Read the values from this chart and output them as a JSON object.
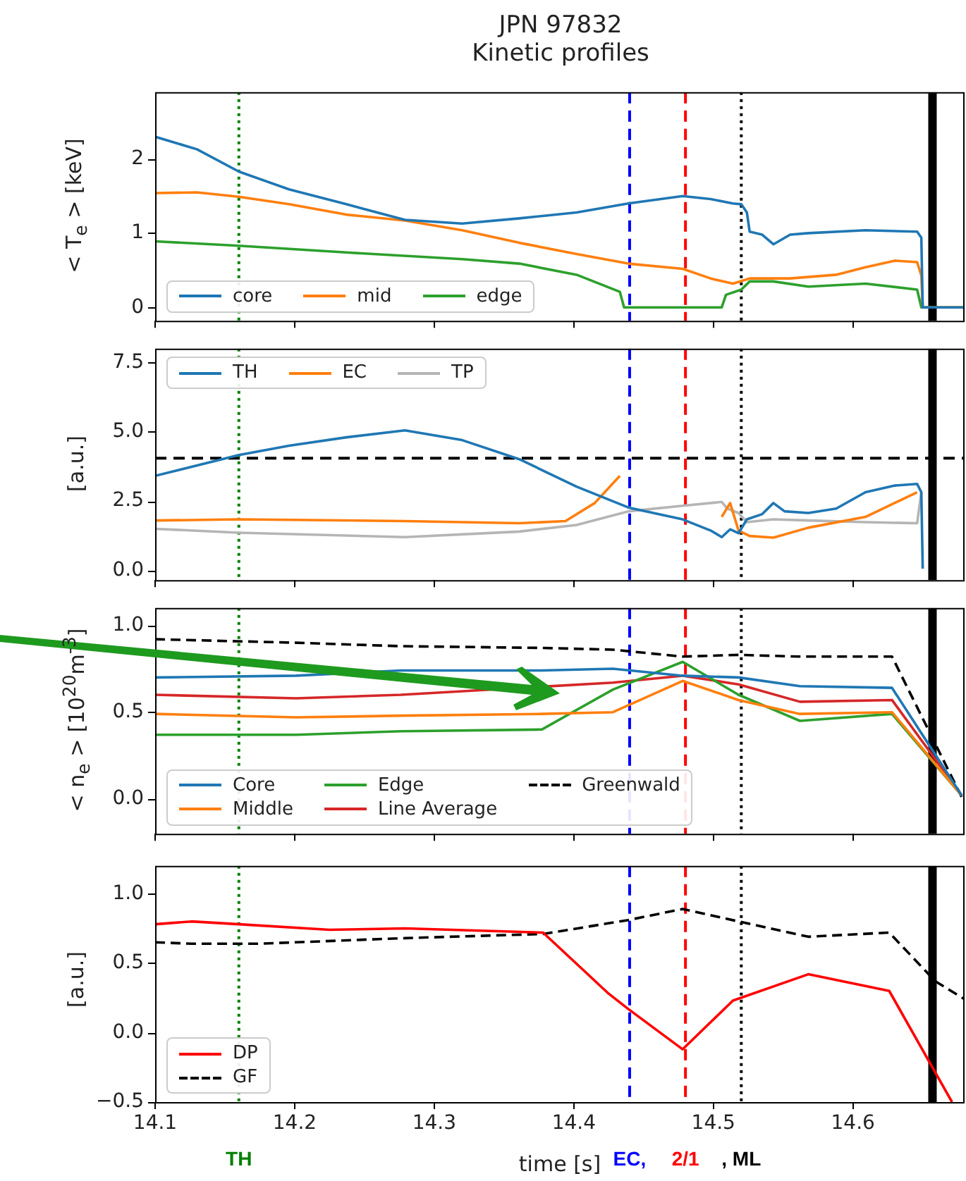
{
  "chart_data": [
    {
      "type": "line",
      "title": "JPN 97832",
      "subtitle": "Kinetic profiles",
      "ylabel": "< T$_{e}$ >  [keV]",
      "legend": "bottom left",
      "tick_labels": "y",
      "xlim": [
        14.1,
        14.68
      ],
      "xticks": [
        14.1,
        14.2,
        14.3,
        14.4,
        14.5,
        14.6
      ],
      "ylim": [
        -0.18,
        2.9
      ],
      "yticks": [
        0,
        1,
        2
      ],
      "series": [
        {
          "name": "core",
          "color": "#1f77b4",
          "x": [
            14.1,
            14.13,
            14.16,
            14.196,
            14.237,
            14.279,
            14.32,
            14.361,
            14.402,
            14.439,
            14.478,
            14.498,
            14.514,
            14.52,
            14.524,
            14.526,
            14.535,
            14.543,
            14.555,
            14.568,
            14.609,
            14.646,
            14.649,
            14.65,
            14.68
          ],
          "values": [
            2.3,
            2.13,
            1.83,
            1.59,
            1.39,
            1.18,
            1.13,
            1.2,
            1.28,
            1.4,
            1.5,
            1.46,
            1.4,
            1.39,
            1.28,
            1.02,
            0.98,
            0.85,
            0.98,
            1.0,
            1.04,
            1.02,
            0.94,
            0,
            0
          ]
        },
        {
          "name": "mid",
          "color": "#ff7f0e",
          "x": [
            14.1,
            14.13,
            14.16,
            14.196,
            14.237,
            14.279,
            14.32,
            14.361,
            14.402,
            14.439,
            14.478,
            14.498,
            14.514,
            14.526,
            14.555,
            14.588,
            14.609,
            14.63,
            14.646,
            14.649,
            14.65,
            14.68
          ],
          "values": [
            1.54,
            1.55,
            1.49,
            1.39,
            1.25,
            1.17,
            1.04,
            0.87,
            0.72,
            0.59,
            0.52,
            0.39,
            0.32,
            0.39,
            0.39,
            0.44,
            0.54,
            0.63,
            0.61,
            0.43,
            0,
            0
          ]
        },
        {
          "name": "edge",
          "color": "#2ca02c",
          "x": [
            14.1,
            14.16,
            14.237,
            14.32,
            14.361,
            14.402,
            14.433,
            14.436,
            14.506,
            14.509,
            14.52,
            14.526,
            14.543,
            14.568,
            14.609,
            14.646,
            14.649,
            14.68
          ],
          "values": [
            0.89,
            0.83,
            0.74,
            0.65,
            0.59,
            0.44,
            0.21,
            0,
            0,
            0.17,
            0.24,
            0.35,
            0.35,
            0.28,
            0.32,
            0.24,
            0,
            0
          ]
        }
      ],
      "ref_lines": [
        {
          "axis": "x",
          "value": 14.16,
          "color": "#008000",
          "line_style": "dotted"
        },
        {
          "axis": "x",
          "value": 14.44,
          "color": "#0000ff",
          "line_style": "dashed"
        },
        {
          "axis": "x",
          "value": 14.48,
          "color": "#ff0000",
          "line_style": "dashed"
        },
        {
          "axis": "x",
          "value": 14.52,
          "color": "#000000",
          "line_style": "dotted"
        },
        {
          "axis": "x",
          "value": 14.657,
          "color": "#000000",
          "line_style": "solid"
        }
      ]
    },
    {
      "type": "line",
      "ylabel": "[a.u.]",
      "legend": "top left",
      "tick_labels": "y",
      "xlim": [
        14.1,
        14.68
      ],
      "xticks": [
        14.1,
        14.2,
        14.3,
        14.4,
        14.5,
        14.6
      ],
      "ylim": [
        -0.35,
        8.0
      ],
      "yticks": [
        {
          "value": 0,
          "label": "0.0"
        },
        {
          "value": 2.5,
          "label": "2.5"
        },
        {
          "value": 5,
          "label": "5.0"
        },
        {
          "value": 7.5,
          "label": "7.5"
        }
      ],
      "series": [
        {
          "name": "TH",
          "color": "#1f77b4",
          "x": [
            14.1,
            14.16,
            14.196,
            14.237,
            14.279,
            14.32,
            14.361,
            14.402,
            14.439,
            14.478,
            14.498,
            14.506,
            14.512,
            14.518,
            14.524,
            14.535,
            14.543,
            14.551,
            14.568,
            14.588,
            14.609,
            14.63,
            14.646,
            14.649,
            14.65
          ],
          "values": [
            3.41,
            4.16,
            4.5,
            4.8,
            5.05,
            4.7,
            4.01,
            3.02,
            2.27,
            1.84,
            1.44,
            1.2,
            1.48,
            1.34,
            1.84,
            2.03,
            2.43,
            2.13,
            2.07,
            2.23,
            2.82,
            3.06,
            3.12,
            2.82,
            0.06
          ]
        },
        {
          "name": "EC",
          "color": "#ff7f0e",
          "x": [
            14.1,
            14.16,
            14.279,
            14.361,
            14.394,
            14.415,
            14.433,
            14.47,
            14.506,
            14.512,
            14.518,
            14.526,
            14.543,
            14.568,
            14.609,
            14.646
          ],
          "values": [
            1.8,
            1.84,
            1.78,
            1.7,
            1.78,
            2.43,
            3.41,
            null,
            1.93,
            2.43,
            1.44,
            1.24,
            1.18,
            1.54,
            1.93,
            2.82
          ]
        },
        {
          "name": "TP",
          "color": "#b5b5b5",
          "x": [
            14.1,
            14.16,
            14.279,
            14.361,
            14.402,
            14.439,
            14.478,
            14.506,
            14.51,
            14.518,
            14.524,
            14.543,
            14.568,
            14.609,
            14.646,
            14.649
          ],
          "values": [
            1.5,
            1.36,
            1.2,
            1.4,
            1.64,
            2.13,
            2.33,
            2.47,
            2.23,
            2.07,
            1.74,
            1.84,
            1.8,
            1.74,
            1.7,
            2.82
          ]
        }
      ],
      "ref_lines": [
        {
          "axis": "y",
          "value": 4.05,
          "color": "#000000",
          "line_style": "dashed"
        },
        {
          "axis": "x",
          "value": 14.16,
          "color": "#008000",
          "line_style": "dotted"
        },
        {
          "axis": "x",
          "value": 14.44,
          "color": "#0000ff",
          "line_style": "dashed"
        },
        {
          "axis": "x",
          "value": 14.48,
          "color": "#ff0000",
          "line_style": "dashed"
        },
        {
          "axis": "x",
          "value": 14.52,
          "color": "#000000",
          "line_style": "dotted"
        },
        {
          "axis": "x",
          "value": 14.657,
          "color": "#000000",
          "line_style": "solid"
        }
      ]
    },
    {
      "type": "line",
      "ylabel": "< n$_{e}$ > [10$^{20}$m$^{-3}$]",
      "legend": "bottom left",
      "tick_labels": "y",
      "xlim": [
        14.1,
        14.68
      ],
      "xticks": [
        14.1,
        14.2,
        14.3,
        14.4,
        14.5,
        14.6
      ],
      "ylim": [
        -0.2,
        1.1
      ],
      "yticks": [
        {
          "value": 0,
          "label": "0.0"
        },
        {
          "value": 0.5,
          "label": "0.5"
        },
        {
          "value": 1,
          "label": "1.0"
        }
      ],
      "x": [
        14.1,
        14.201,
        14.276,
        14.377,
        14.428,
        14.478,
        14.518,
        14.562,
        14.628,
        14.678
      ],
      "series": [
        {
          "name": "Core",
          "color": "#1f77b4",
          "values": [
            0.7,
            0.71,
            0.74,
            0.74,
            0.75,
            0.71,
            0.7,
            0.65,
            0.64,
            0.02
          ]
        },
        {
          "name": "Middle",
          "color": "#ff7f0e",
          "values": [
            0.49,
            0.47,
            0.48,
            0.49,
            0.5,
            0.68,
            0.57,
            0.49,
            0.5,
            0.02
          ]
        },
        {
          "name": "Edge",
          "color": "#2ca02c",
          "values": [
            0.37,
            0.37,
            0.39,
            0.4,
            0.63,
            0.79,
            0.6,
            0.45,
            0.49,
            0.02
          ]
        },
        {
          "name": "Line Average",
          "color": "#d62728",
          "x": [
            14.1,
            14.201,
            14.276,
            14.428,
            14.478,
            14.518,
            14.562,
            14.628,
            14.678
          ],
          "values": [
            0.6,
            0.58,
            0.6,
            0.67,
            0.71,
            0.66,
            0.56,
            0.57,
            0.02
          ]
        },
        {
          "name": "Greenwald",
          "color": "#000000",
          "line_style": "dashed",
          "values": [
            0.92,
            0.9,
            0.88,
            0.87,
            0.86,
            0.82,
            0.83,
            0.82,
            0.82,
            0.01
          ]
        }
      ],
      "ref_lines": [
        {
          "axis": "x",
          "value": 14.16,
          "color": "#008000",
          "line_style": "dotted"
        },
        {
          "axis": "x",
          "value": 14.44,
          "color": "#0000ff",
          "line_style": "dashed"
        },
        {
          "axis": "x",
          "value": 14.48,
          "color": "#ff0000",
          "line_style": "dashed"
        },
        {
          "axis": "x",
          "value": 14.52,
          "color": "#000000",
          "line_style": "dotted"
        },
        {
          "axis": "x",
          "value": 14.657,
          "color": "#000000",
          "line_style": "solid"
        }
      ]
    },
    {
      "type": "line",
      "ylabel": "[a.u.]",
      "xlabel": "time [s]",
      "legend": "bottom left",
      "xlim": [
        14.1,
        14.68
      ],
      "xticks": [
        14.1,
        14.2,
        14.3,
        14.4,
        14.5,
        14.6
      ],
      "ylim": [
        -0.5,
        1.2
      ],
      "yticks": [
        {
          "value": -0.5,
          "label": "−0.5"
        },
        {
          "value": 0,
          "label": "0.0"
        },
        {
          "value": 0.5,
          "label": "0.5"
        },
        {
          "value": 1,
          "label": "1.0"
        }
      ],
      "series": [
        {
          "name": "DP",
          "color": "#ff0000",
          "x": [
            14.1,
            14.126,
            14.16,
            14.225,
            14.279,
            14.378,
            14.425,
            14.439,
            14.478,
            14.514,
            14.568,
            14.626,
            14.671
          ],
          "values": [
            0.78,
            0.8,
            0.78,
            0.74,
            0.75,
            0.72,
            0.28,
            0.17,
            -0.12,
            0.23,
            0.42,
            0.3,
            -0.5
          ]
        },
        {
          "name": "GF",
          "color": "#000000",
          "line_style": "dashed",
          "x": [
            14.1,
            14.126,
            14.175,
            14.279,
            14.378,
            14.439,
            14.478,
            14.518,
            14.568,
            14.626,
            14.659,
            14.68
          ],
          "values": [
            0.65,
            0.64,
            0.64,
            0.68,
            0.71,
            0.81,
            0.89,
            0.8,
            0.69,
            0.72,
            0.37,
            0.24
          ]
        }
      ],
      "annotations": [
        "TH",
        "EC,",
        "2/1",
        ", ML"
      ],
      "ref_lines": [
        {
          "axis": "x",
          "value": 14.16,
          "color": "#008000",
          "line_style": "dotted"
        },
        {
          "axis": "x",
          "value": 14.44,
          "color": "#0000ff",
          "line_style": "dashed"
        },
        {
          "axis": "x",
          "value": 14.48,
          "color": "#ff0000",
          "line_style": "dashed"
        },
        {
          "axis": "x",
          "value": 14.52,
          "color": "#000000",
          "line_style": "dotted"
        },
        {
          "axis": "x",
          "value": 14.657,
          "color": "#000000",
          "line_style": "solid"
        }
      ]
    }
  ]
}
